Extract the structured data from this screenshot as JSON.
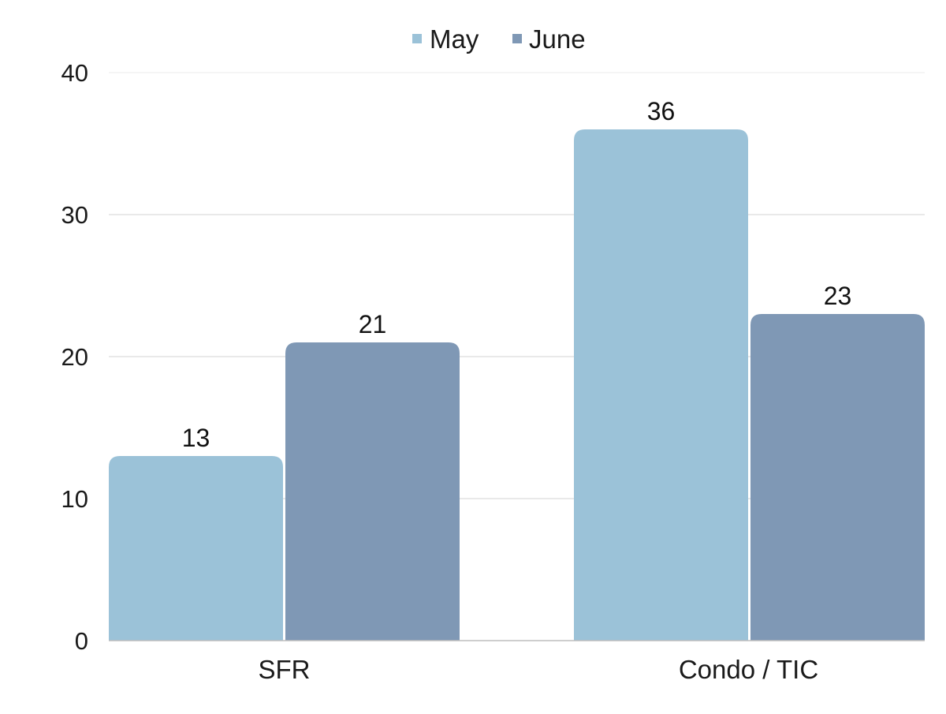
{
  "chart_data": {
    "type": "bar",
    "title": "",
    "xlabel": "",
    "ylabel": "",
    "categories": [
      "SFR",
      "Condo / TIC"
    ],
    "series": [
      {
        "name": "May",
        "values": [
          13,
          36
        ],
        "color": "#9BC2D8"
      },
      {
        "name": "June",
        "values": [
          21,
          23
        ],
        "color": "#7F98B5"
      }
    ],
    "ylim": [
      0,
      40
    ],
    "yticks": [
      0,
      10,
      20,
      30,
      40
    ],
    "grid": true,
    "legend": "top-center",
    "data_labels": true
  }
}
